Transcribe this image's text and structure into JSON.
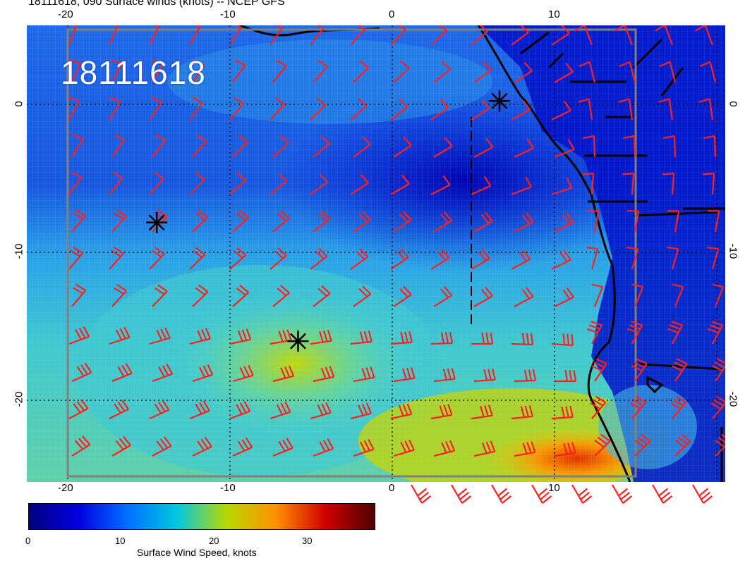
{
  "header": {
    "title": "18111618, 090 Surface winds (knots) -- NCEP GFS"
  },
  "map": {
    "stamp": "18111618",
    "lon_range": [
      -22.5,
      20.5
    ],
    "lat_range": [
      -25.5,
      5.3
    ],
    "lon_ticks": [
      "-20",
      "-10",
      "0",
      "10"
    ],
    "lat_ticks": [
      "0",
      "-10",
      "-20"
    ],
    "graticule_step_deg": 10,
    "storm_markers": [
      {
        "lon": 6.6,
        "lat": 0.2
      },
      {
        "lon": -14.5,
        "lat": -8.0
      },
      {
        "lon": -5.8,
        "lat": -16.0
      }
    ],
    "barb_color": "#ff2020"
  },
  "colorbar": {
    "label": "Surface Wind Speed, knots",
    "ticks": [
      "0",
      "10",
      "20",
      "30"
    ],
    "range": [
      0,
      37
    ],
    "colors": [
      "#00007f",
      "#0000e0",
      "#0070ff",
      "#00c8e0",
      "#b8d800",
      "#ff9000",
      "#d00000",
      "#500000"
    ]
  }
}
